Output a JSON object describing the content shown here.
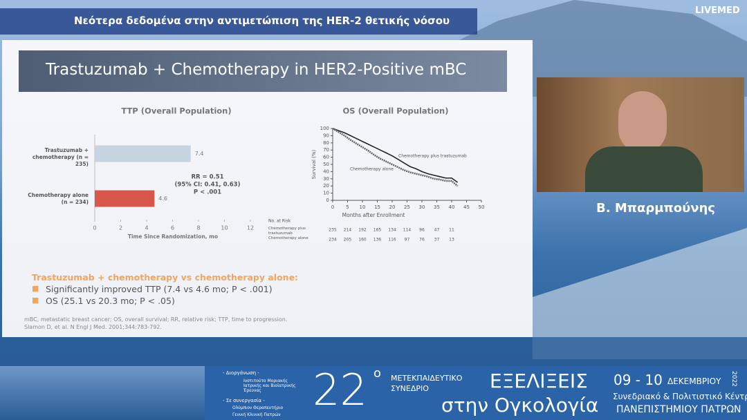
{
  "header": {
    "title": "Νεότερα δεδομένα στην αντιμετώπιση της HER-2 θετικής νόσου",
    "brand": "LIVEMED"
  },
  "slide": {
    "title": "Trastuzumab + Chemotherapy in HER2-Positive mBC",
    "summary": {
      "heading": "Trastuzumab + chemotherapy vs chemotherapy alone:",
      "items": [
        "Significantly improved TTP (7.4 vs 4.6 mo; P < .001)",
        "OS (25.1 vs 20.3 mo; P < .05)"
      ]
    },
    "footnotes": [
      "mBC, metastatic breast cancer; OS, overall survival; RR, relative risk; TTP, time to progression.",
      "Slamon D, et al. N Engl J Med. 2001;344:783-792."
    ]
  },
  "chart_data": [
    {
      "type": "bar",
      "orientation": "horizontal",
      "title": "TTP (Overall Population)",
      "categories": [
        "Trastuzumab + chemotherapy (n = 235)",
        "Chemotherapy alone (n = 234)"
      ],
      "values": [
        7.4,
        4.6
      ],
      "colors": [
        "#c6d3e0",
        "#d9574a"
      ],
      "xlim": [
        0,
        12
      ],
      "xticks": [
        0,
        2,
        4,
        6,
        8,
        10,
        12
      ],
      "xlabel": "Time Since Randomization, mo",
      "annotations": [
        "RR = 0.51",
        "(95% CI: 0.41, 0.63)",
        "P < .001"
      ]
    },
    {
      "type": "line",
      "title": "OS (Overall Population)",
      "x": [
        0,
        2,
        4,
        6,
        8,
        10,
        12,
        14,
        16,
        18,
        20,
        22,
        24,
        26,
        28,
        30,
        32,
        34,
        36,
        38,
        40,
        42
      ],
      "series": [
        {
          "name": "Chemotherapy plus trastuzumab",
          "color": "#222222",
          "values": [
            100,
            97,
            94,
            90,
            86,
            82,
            78,
            74,
            70,
            66,
            62,
            57,
            52,
            47,
            44,
            40,
            37,
            35,
            33,
            31,
            31,
            25
          ]
        },
        {
          "name": "Chemotherapy alone",
          "color": "#666666",
          "values": [
            100,
            95,
            90,
            84,
            79,
            74,
            69,
            63,
            58,
            54,
            50,
            46,
            42,
            39,
            37,
            35,
            33,
            30,
            29,
            27,
            27,
            20
          ]
        }
      ],
      "xlim": [
        0,
        50
      ],
      "xticks": [
        0,
        5,
        10,
        15,
        20,
        25,
        30,
        35,
        40,
        45,
        50
      ],
      "ylim": [
        0,
        100
      ],
      "yticks": [
        0,
        10,
        20,
        30,
        40,
        50,
        60,
        70,
        80,
        90,
        100
      ],
      "xlabel": "Months after Enrollment",
      "ylabel": "Survival (%)",
      "risk_table": {
        "title": "No. at Risk",
        "rows": [
          {
            "name": "Chemotherapy plus trastuzumab",
            "values": [
              235,
              214,
              192,
              165,
              134,
              114,
              96,
              47,
              11
            ]
          },
          {
            "name": "Chemotherapy alone",
            "values": [
              234,
              205,
              160,
              136,
              116,
              97,
              76,
              37,
              13
            ]
          }
        ]
      }
    }
  ],
  "speaker": {
    "name": "Β. Μπαρμπούνης"
  },
  "banner": {
    "organizer_label": "- Διοργάνωση -",
    "organizer": "Ινστιτούτο Μοριακής Ιατρικής και Βιοϊατρικής Έρευνας",
    "partner_label": "- Σε συνεργασία -",
    "partners": [
      "Ολύμπιον Θεραπευτήριο",
      "Γενική Κλινική Πατρών"
    ],
    "number": "22",
    "superscript": "ο",
    "kind": [
      "ΜΕΤΕΚΠΑΙΔΕΥΤΙΚΟ",
      "ΣΥΝΕΔΡΙΟ"
    ],
    "name": "ΕΞΕΛΙΞΕΙΣ",
    "subtitle": "στην Ογκολογία",
    "dates": "09 - 10",
    "month": "ΔΕΚΕΜΒΡΙΟΥ",
    "year": "2022",
    "venue": "Συνεδριακό & Πολιτιστικό Κέντρο",
    "university": "ΠΑΝΕΠΙΣΤΗΜΙΟΥ ΠΑΤΡΩΝ"
  }
}
